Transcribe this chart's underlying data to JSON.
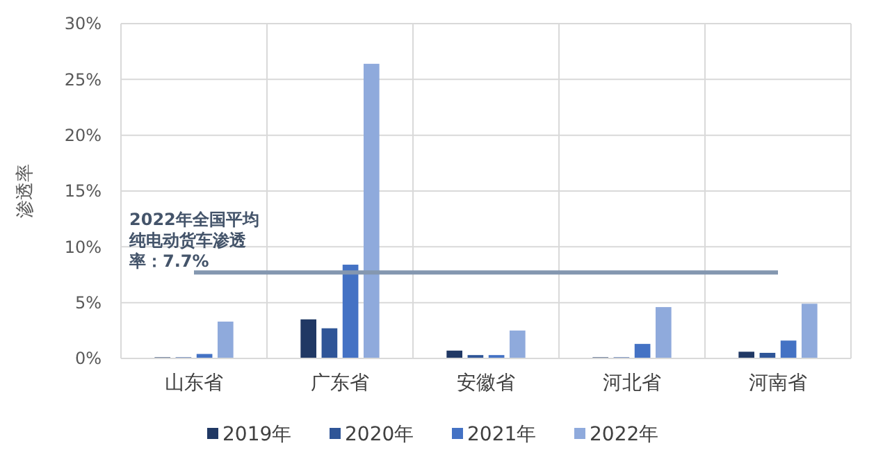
{
  "chart_data": {
    "type": "bar",
    "ylabel": "渗透率",
    "categories": [
      "山东省",
      "广东省",
      "安徽省",
      "河北省",
      "河南省"
    ],
    "series": [
      {
        "name": "2019年",
        "color": "#203864",
        "values": [
          0.1,
          3.5,
          0.7,
          0.1,
          0.6
        ]
      },
      {
        "name": "2020年",
        "color": "#2f5597",
        "values": [
          0.1,
          2.7,
          0.3,
          0.1,
          0.5
        ]
      },
      {
        "name": "2021年",
        "color": "#4472c4",
        "values": [
          0.4,
          8.4,
          0.3,
          1.3,
          1.6
        ]
      },
      {
        "name": "2022年",
        "color": "#8faadc",
        "values": [
          3.3,
          26.4,
          2.5,
          4.6,
          4.9
        ]
      }
    ],
    "ylim": [
      0,
      30
    ],
    "yticks": [
      {
        "value": 0,
        "label": "0%"
      },
      {
        "value": 5,
        "label": "5%"
      },
      {
        "value": 10,
        "label": "10%"
      },
      {
        "value": 15,
        "label": "15%"
      },
      {
        "value": 20,
        "label": "20%"
      },
      {
        "value": 25,
        "label": "25%"
      },
      {
        "value": 30,
        "label": "30%"
      }
    ],
    "ref_lines": [
      {
        "axis": "y",
        "value": 7.7,
        "label": "2022年全国平均纯电动货车渗透率：7.7%",
        "color": "#8497b0"
      }
    ],
    "grid": true,
    "legend": "bottom"
  }
}
